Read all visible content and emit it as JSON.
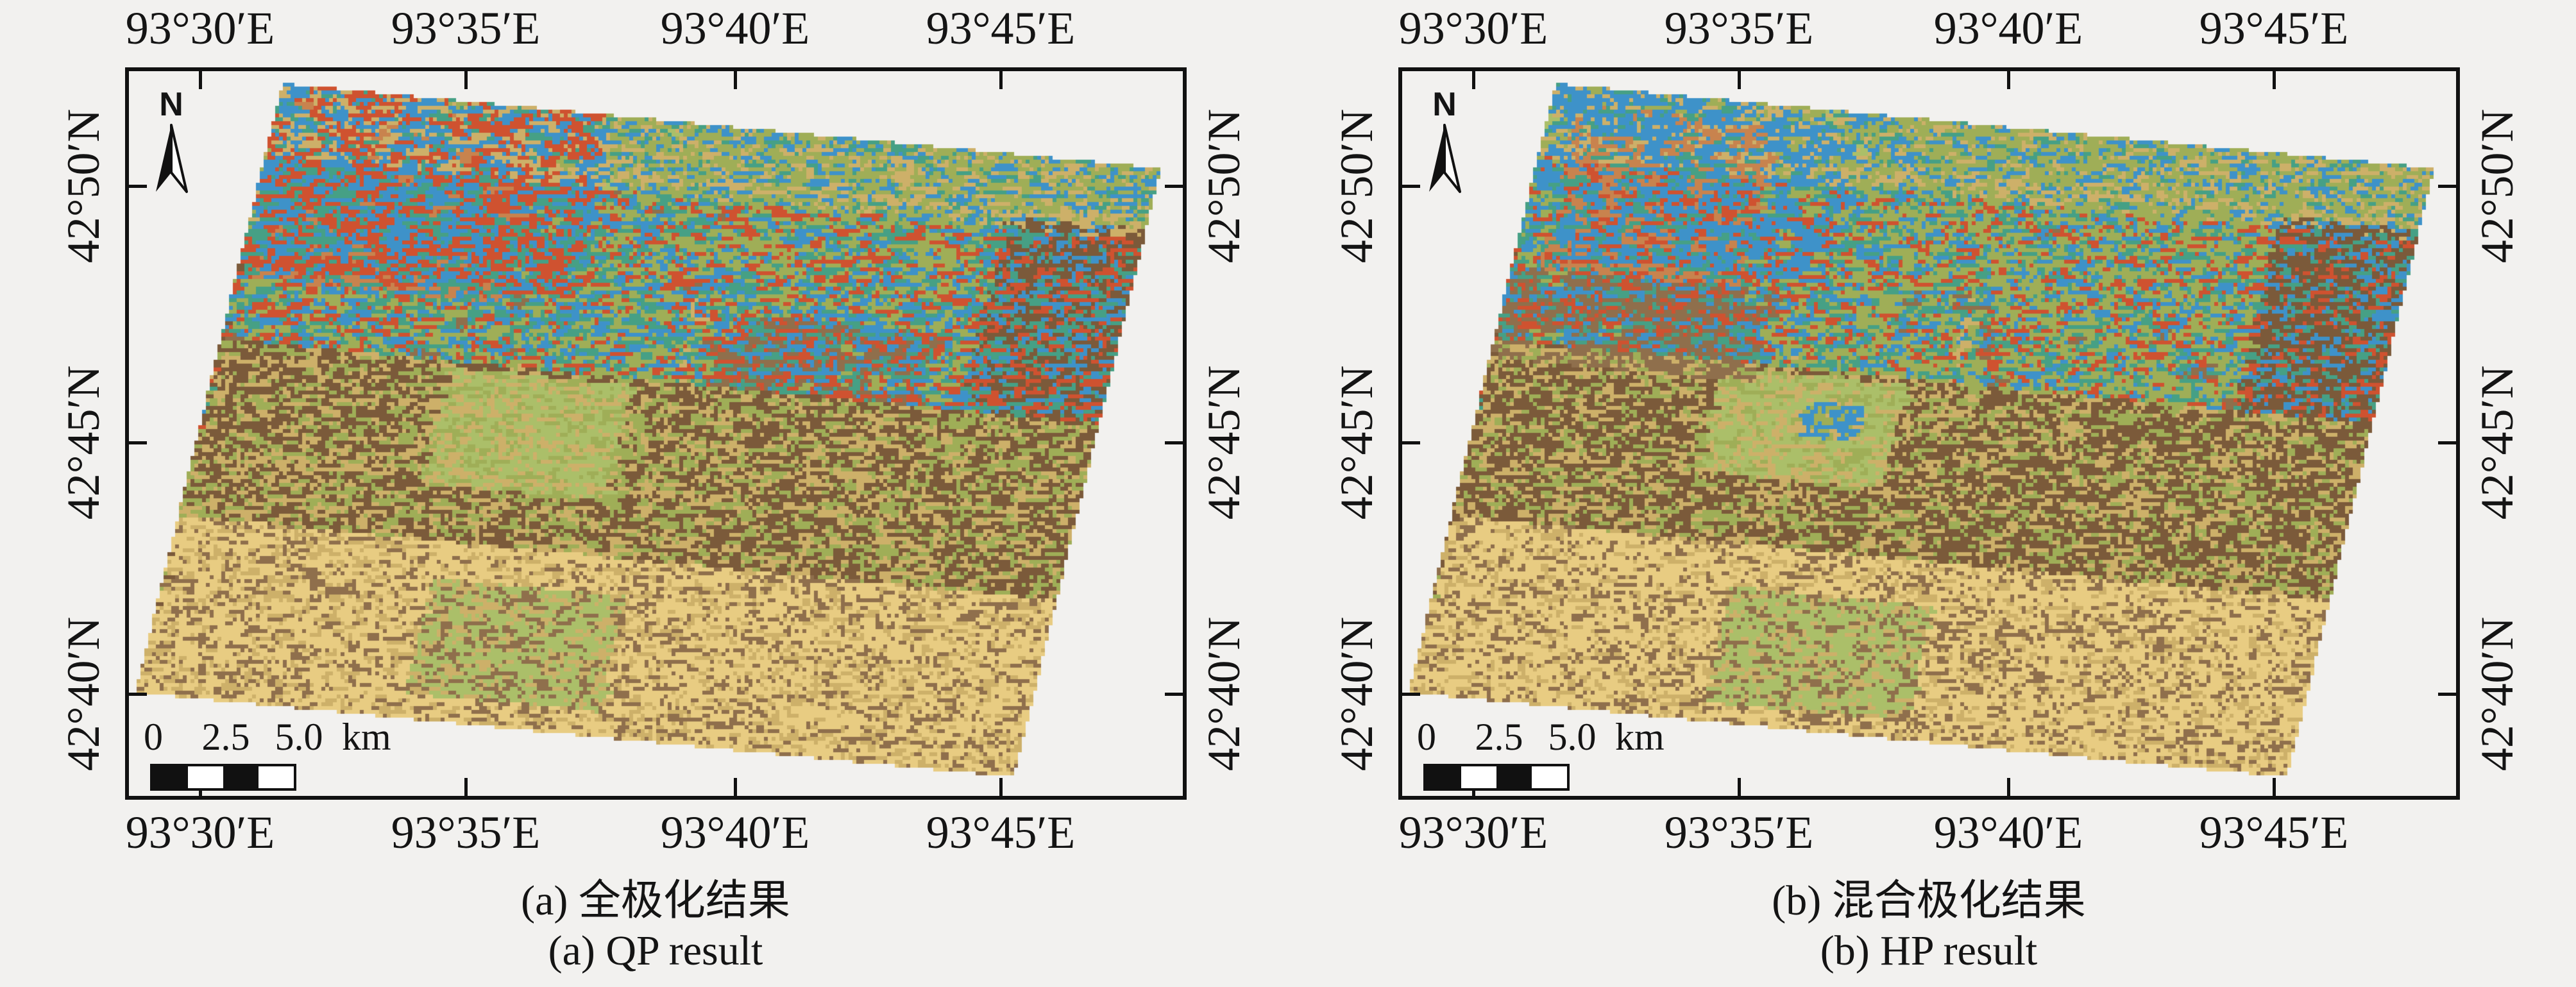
{
  "figure": {
    "bg": "#f2f1ef",
    "frame_color": "#111111",
    "text_color": "#141414"
  },
  "axis": {
    "lon": [
      "93°30′E",
      "93°35′E",
      "93°40′E",
      "93°45′E"
    ],
    "lat": [
      "42°50′N",
      "42°45′N",
      "42°40′N"
    ]
  },
  "north_arrow": {
    "label": "N"
  },
  "scalebar": {
    "ticks": [
      "0",
      "2.5",
      "5.0"
    ],
    "unit": "km"
  },
  "panels": [
    {
      "id": "qp",
      "caption_zh": "(a) 全极化结果",
      "caption_en": "(a) QP result",
      "seed": 11,
      "speckle_scale": 1.0,
      "regions": [
        {
          "u": [
            0.02,
            0.3
          ],
          "v": [
            0.02,
            0.32
          ],
          "color": "orange",
          "strength": 0.55
        },
        {
          "u": [
            0.0,
            0.38
          ],
          "v": [
            0.0,
            0.3
          ],
          "color": "blue",
          "strength": 0.13
        },
        {
          "u": [
            0.0,
            0.38
          ],
          "v": [
            0.0,
            0.3
          ],
          "color": "red",
          "strength": 0.09
        },
        {
          "u": [
            0.55,
            0.95
          ],
          "v": [
            0.05,
            0.3
          ],
          "color": "olive",
          "strength": 0.35
        },
        {
          "u": [
            0.26,
            0.47
          ],
          "v": [
            0.43,
            0.62
          ],
          "color": "lightgreen",
          "strength": 0.85
        },
        {
          "u": [
            0.84,
            1.01
          ],
          "v": [
            0.1,
            0.55
          ],
          "color": "brown",
          "strength": 0.75
        },
        {
          "u": [
            0.45,
            1.01
          ],
          "v": [
            -0.01,
            0.09
          ],
          "color": "olive",
          "strength": 0.55
        },
        {
          "u": [
            0.3,
            0.52
          ],
          "v": [
            0.77,
            0.96
          ],
          "color": "lightgreen",
          "strength": 0.7
        },
        {
          "u": [
            0.55,
            0.8
          ],
          "v": [
            0.3,
            0.42
          ],
          "color": "brown2",
          "strength": 0.4
        }
      ]
    },
    {
      "id": "hp",
      "caption_zh": "(b) 混合极化结果",
      "caption_en": "(b) HP result",
      "seed": 71,
      "speckle_scale": 0.72,
      "regions": [
        {
          "u": [
            0.03,
            0.26
          ],
          "v": [
            0.03,
            0.3
          ],
          "color": "orange",
          "strength": 0.5
        },
        {
          "u": [
            0.0,
            0.35
          ],
          "v": [
            0.0,
            0.28
          ],
          "color": "blue",
          "strength": 0.05
        },
        {
          "u": [
            0.55,
            0.95
          ],
          "v": [
            0.05,
            0.3
          ],
          "color": "olive",
          "strength": 0.35
        },
        {
          "u": [
            0.26,
            0.47
          ],
          "v": [
            0.43,
            0.6
          ],
          "color": "lightgreen",
          "strength": 0.75
        },
        {
          "u": [
            0.84,
            1.01
          ],
          "v": [
            0.1,
            0.5
          ],
          "color": "brown",
          "strength": 0.7
        },
        {
          "u": [
            0.45,
            1.01
          ],
          "v": [
            -0.01,
            0.09
          ],
          "color": "olive",
          "strength": 0.55
        },
        {
          "u": [
            0.33,
            0.56
          ],
          "v": [
            0.78,
            0.97
          ],
          "color": "lightgreen",
          "strength": 0.65
        },
        {
          "u": [
            0.0,
            0.3
          ],
          "v": [
            0.3,
            0.45
          ],
          "color": "brown2",
          "strength": 0.45
        },
        {
          "u": [
            0.36,
            0.43
          ],
          "v": [
            0.47,
            0.53
          ],
          "color": "blue",
          "strength": 0.5
        }
      ]
    }
  ],
  "map_style": {
    "palette": {
      "olive": "#9fae57",
      "lightgreen": "#abbf69",
      "brown": "#7b5a3a",
      "brown2": "#8f6f4c",
      "tan": "#e8cc82",
      "tanroad": "#cdb069",
      "orange": "#c8834e",
      "red": "#cf5230",
      "blue": "#3e92c9",
      "teal": "#46a085",
      "gray": "#8e939c"
    },
    "footprint": {
      "tl": [
        239,
        19
      ],
      "u": [
        1370,
        132
      ],
      "v": [
        -229,
        950
      ]
    },
    "cell": 6,
    "bands": [
      {
        "v0": 0,
        "v1": 0.12,
        "base": {
          "olive": 0.46,
          "lightgreen": 0.22,
          "brown2": 0.16,
          "teal": 0.05,
          "orange": 0.04,
          "blue": 0.04,
          "gray": 0.03
        },
        "speckle_rate": 0.22,
        "speckle": [
          "blue",
          "tanroad",
          "teal",
          "gray",
          "red"
        ]
      },
      {
        "v0": 0.12,
        "v1": 0.42,
        "base": {
          "olive": 0.44,
          "brown2": 0.21,
          "lightgreen": 0.1,
          "orange": 0.04,
          "blue": 0.07,
          "teal": 0.05,
          "gray": 0.04,
          "red": 0.05
        },
        "speckle_rate": 0.3,
        "speckle": [
          "blue",
          "red",
          "teal",
          "gray",
          "tanroad",
          "lightgreen"
        ]
      },
      {
        "v0": 0.42,
        "v1": 0.71,
        "base": {
          "brown": 0.5,
          "brown2": 0.2,
          "olive": 0.14,
          "tanroad": 0.07,
          "lightgreen": 0.05,
          "blue": 0.02,
          "teal": 0.02
        },
        "speckle_rate": 0.2,
        "speckle": [
          "tanroad",
          "olive",
          "blue",
          "gray"
        ]
      },
      {
        "v0": 0.71,
        "v1": 1.01,
        "base": {
          "tan": 0.8,
          "tanroad": 0.09,
          "lightgreen": 0.05,
          "brown2": 0.04,
          "olive": 0.02
        },
        "speckle_rate": 0.1,
        "speckle": [
          "tanroad",
          "brown2",
          "lightgreen",
          "teal"
        ]
      }
    ],
    "lines": [
      {
        "o": "h",
        "pos": 0.095,
        "range": [
          0.3,
          1.0
        ],
        "w": 0.006,
        "color": "tanroad"
      },
      {
        "o": "v",
        "pos": 0.52,
        "range": [
          0.28,
          0.8
        ],
        "w": 0.0045,
        "color": "tanroad"
      },
      {
        "o": "v",
        "pos": 0.34,
        "range": [
          0.4,
          0.72
        ],
        "w": 0.004,
        "color": "tanroad"
      },
      {
        "o": "h",
        "pos": 0.6,
        "range": [
          0.05,
          0.85
        ],
        "w": 0.0035,
        "color": "tanroad"
      },
      {
        "o": "v",
        "pos": 0.12,
        "range": [
          0.55,
          0.95
        ],
        "w": 0.004,
        "color": "tanroad"
      },
      {
        "o": "v",
        "pos": 0.75,
        "range": [
          0.45,
          0.9
        ],
        "w": 0.004,
        "color": "tanroad"
      }
    ]
  }
}
